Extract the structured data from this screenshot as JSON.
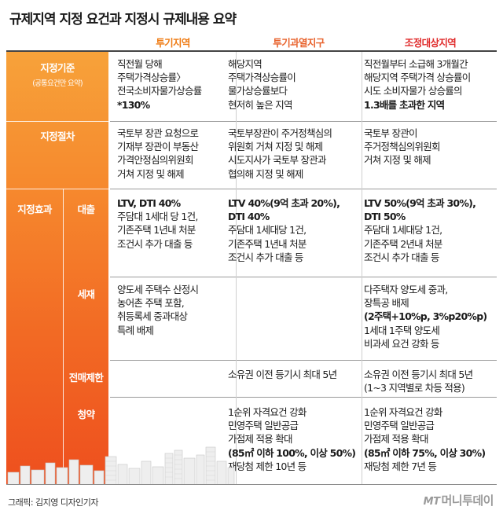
{
  "title": "규제지역 지정 요건과 지정시 규제내용 요약",
  "columns": [
    "투기지역",
    "투기과열지구",
    "조정대상지역"
  ],
  "rows": {
    "criteria": {
      "label": "지정기준",
      "sublabel": "(공통요건만 요약)",
      "c1": [
        "직전월 당해",
        "주택가격상승률〉",
        "전국소비자물가상승률",
        "*130%"
      ],
      "c2": [
        "해당지역",
        "주택가격상승률이",
        "물가상승률보다",
        "현저히 높은 지역"
      ],
      "c3": [
        "직전월부터 소급해 3개월간",
        "해당지역 주택가격 상승률이",
        "시도 소비자물가 상승률의",
        "1.3배를 초과한 지역"
      ]
    },
    "procedure": {
      "label": "지정절차",
      "c1": [
        "국토부 장관 요청으로",
        "기재부 장관이 부동산",
        "가격안정심의위원회",
        "거쳐 지정 및 해제"
      ],
      "c2": [
        "국토부장관이 주거정책심의",
        "위원회 거쳐 지정 및 해제",
        "시도지사가 국토부 장관과",
        "협의해 지정 및 해제"
      ],
      "c3": [
        "국토부 장관이",
        "주거정책심의위원회",
        "거쳐 지정 및 해제"
      ]
    },
    "effects": {
      "label": "지정효과",
      "loan": {
        "label": "대출",
        "c1": [
          "LTV, DTI 40%",
          "주담대 1세대 당 1건,",
          "기존주택 1년내 처분",
          "조건시 추가 대출 등"
        ],
        "c2": [
          "LTV 40%(9억 초과 20%),",
          "DTI 40%",
          "주담대 1세대당 1건,",
          "기존주택 1년내 처분",
          "조건시 추가 대출 등"
        ],
        "c3": [
          "LTV 50%(9억 초과 30%),",
          "DTI 50%",
          "주담대 1세대당 1건,",
          "기존주택 2년내 처분",
          "조건시 추가 대출 등"
        ]
      },
      "tax": {
        "label": "세재",
        "c1": [
          "양도세 주택수 산정시",
          "농어촌 주택 포함,",
          "취등록세 중과대상",
          "특례 배제"
        ],
        "c3": [
          "다주택자 양도세 중과,",
          "장특공 배제",
          "(2주택+10%p, 3%p20%p)",
          "1세대 1주택 양도세",
          "비과세 요건 강화 등"
        ]
      },
      "resale": {
        "label": "전매제한",
        "c2": [
          "소유권 이전 등기시 최대 5년"
        ],
        "c3": [
          "소유권 이전 등기시 최대 5년",
          "(1~3 지역별로 차등 적용)"
        ]
      },
      "subscription": {
        "label": "청약",
        "c2": [
          "1순위 자격요건 강화",
          "민영주택 일반공급",
          "가점제 적용 확대",
          "(85㎡ 이하 100%, 이상 50%)",
          "재당첨 제한 10년 등"
        ],
        "c3": [
          "1순위 자격요건 강화",
          "민영주택 일반공급",
          "가점제 적용 확대",
          "(85㎡ 이하 75%, 이상 30%)",
          "재당첨 제한 7년 등"
        ]
      }
    }
  },
  "credit": "그래픽: 김지영 디자인기자",
  "logo": {
    "mark": "MT",
    "name": "머니투데이"
  },
  "colors": {
    "orange_top": "#f7a23a",
    "orange_bottom": "#ee4f1e",
    "col1": "#ef7c14",
    "col2": "#e8622c",
    "col3": "#e02b2b"
  }
}
